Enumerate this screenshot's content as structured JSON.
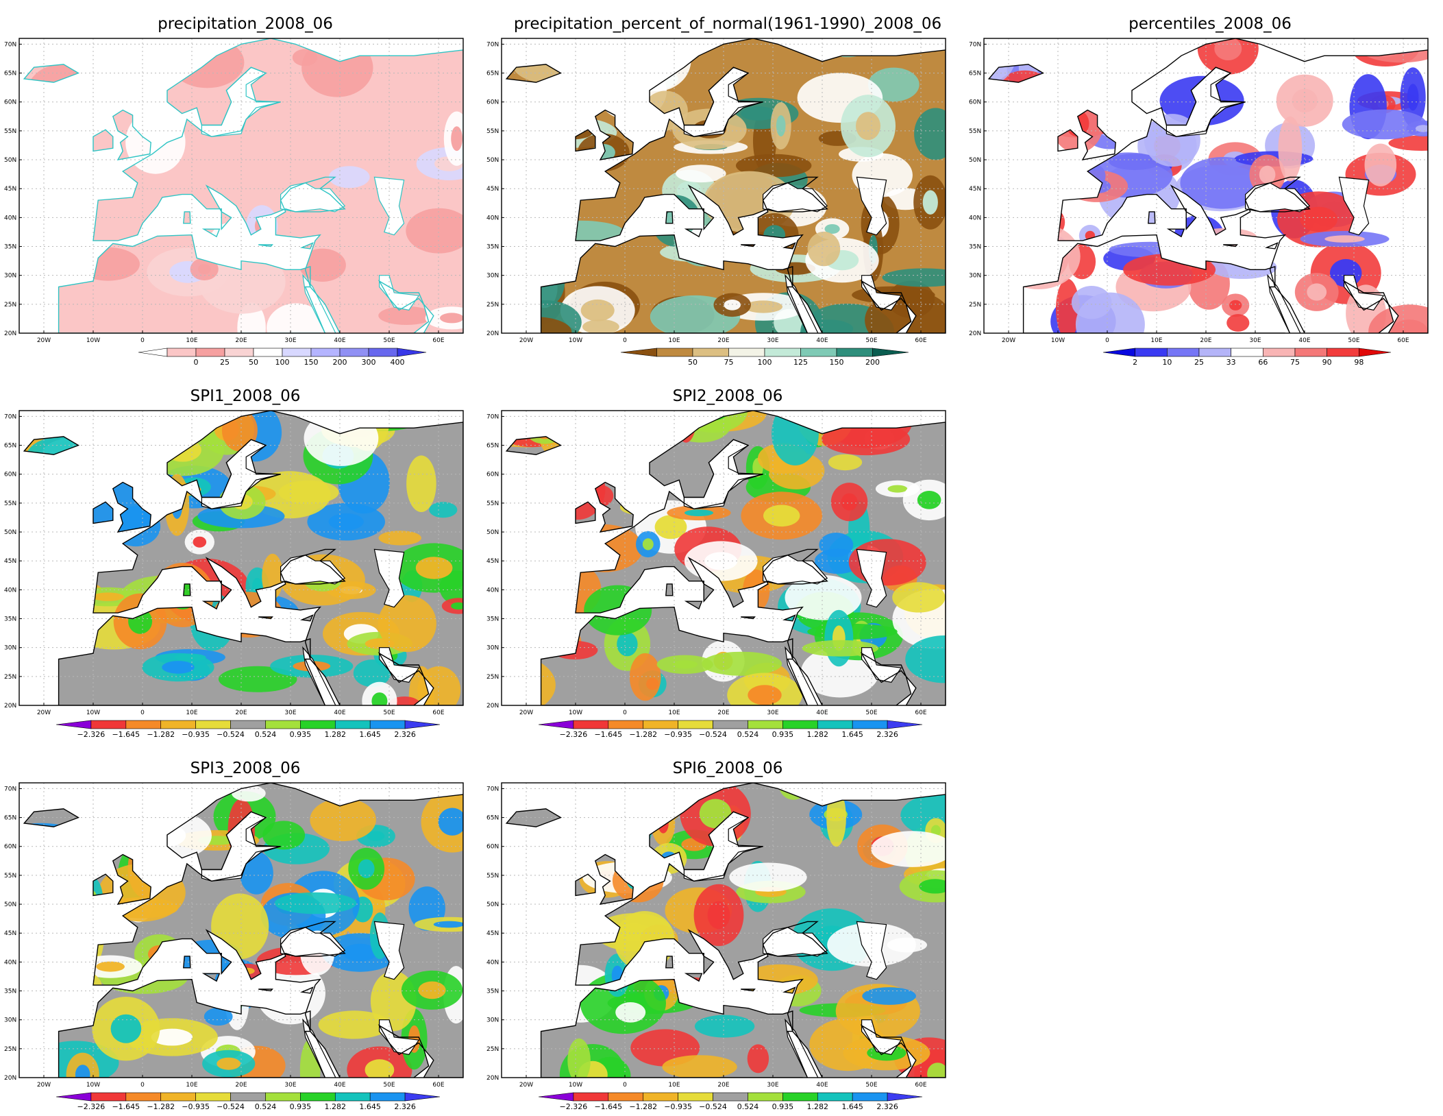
{
  "panels": [
    {
      "id": "precipitation",
      "title": "precipitation_2008_06",
      "kind": "precip",
      "colorbar": {
        "colors": [
          "#ffffff",
          "#fbc6c6",
          "#f6a0a0",
          "#f9d3d3",
          "#ffffff",
          "#d8d8ff",
          "#b4b4ff",
          "#9090f4",
          "#6868ee",
          "#3838e8"
        ],
        "labels": [
          "0",
          "25",
          "50",
          "100",
          "150",
          "200",
          "300",
          "400"
        ]
      }
    },
    {
      "id": "percent-of-normal",
      "title": "precipitation_percent_of_normal(1961-1990)_2008_06",
      "kind": "percent",
      "colorbar": {
        "colors": [
          "#8a5010",
          "#bf8a40",
          "#dcbf82",
          "#f3f3e6",
          "#c3ead8",
          "#7fcab5",
          "#2f8f7c",
          "#0a5d50"
        ],
        "labels": [
          "50",
          "75",
          "100",
          "125",
          "150",
          "200"
        ]
      }
    },
    {
      "id": "percentiles",
      "title": "percentiles_2008_06",
      "kind": "percentiles",
      "colorbar": {
        "colors": [
          "#0808e0",
          "#3a3af2",
          "#7676f6",
          "#b4b4f8",
          "#ffffff",
          "#f8b4b4",
          "#f47878",
          "#f23c3c",
          "#e00808"
        ],
        "labels": [
          "2",
          "10",
          "25",
          "33",
          "66",
          "75",
          "90",
          "98"
        ]
      }
    },
    {
      "id": "spi1",
      "title": "SPI1_2008_06",
      "kind": "spi",
      "colorbar": {
        "colors": [
          "#8a00d8",
          "#f03838",
          "#f58a28",
          "#f0b428",
          "#e6dc3a",
          "#a0a0a0",
          "#a4e03c",
          "#28d228",
          "#14c3bc",
          "#1a94f0",
          "#3c3cf0"
        ],
        "labels": [
          "−2.326",
          "−1.645",
          "−1.282",
          "−0.935",
          "−0.524",
          "0.524",
          "0.935",
          "1.282",
          "1.645",
          "2.326"
        ]
      }
    },
    {
      "id": "spi2",
      "title": "SPI2_2008_06",
      "kind": "spi",
      "colorbar": {
        "colors": [
          "#8a00d8",
          "#f03838",
          "#f58a28",
          "#f0b428",
          "#e6dc3a",
          "#a0a0a0",
          "#a4e03c",
          "#28d228",
          "#14c3bc",
          "#1a94f0",
          "#3c3cf0"
        ],
        "labels": [
          "−2.326",
          "−1.645",
          "−1.282",
          "−0.935",
          "−0.524",
          "0.524",
          "0.935",
          "1.282",
          "1.645",
          "2.326"
        ]
      }
    },
    {
      "id": "spi3",
      "title": "SPI3_2008_06",
      "kind": "spi",
      "colorbar": {
        "colors": [
          "#8a00d8",
          "#f03838",
          "#f58a28",
          "#f0b428",
          "#e6dc3a",
          "#a0a0a0",
          "#a4e03c",
          "#28d228",
          "#14c3bc",
          "#1a94f0",
          "#3c3cf0"
        ],
        "labels": [
          "−2.326",
          "−1.645",
          "−1.282",
          "−0.935",
          "−0.524",
          "0.524",
          "0.935",
          "1.282",
          "1.645",
          "2.326"
        ]
      }
    },
    {
      "id": "spi6",
      "title": "SPI6_2008_06",
      "kind": "spi",
      "colorbar": {
        "colors": [
          "#8a00d8",
          "#f03838",
          "#f58a28",
          "#f0b428",
          "#e6dc3a",
          "#a0a0a0",
          "#a4e03c",
          "#28d228",
          "#14c3bc",
          "#1a94f0",
          "#3c3cf0"
        ],
        "labels": [
          "−2.326",
          "−1.645",
          "−1.282",
          "−0.935",
          "−0.524",
          "0.524",
          "0.935",
          "1.282",
          "1.645",
          "2.326"
        ]
      }
    }
  ],
  "axes": {
    "lat_labels": [
      "70N",
      "65N",
      "60N",
      "55N",
      "50N",
      "45N",
      "40N",
      "35N",
      "30N",
      "25N",
      "20N"
    ],
    "lon_labels": [
      "20W",
      "10W",
      "0",
      "10E",
      "20E",
      "30E",
      "40E",
      "50E",
      "60E"
    ]
  }
}
